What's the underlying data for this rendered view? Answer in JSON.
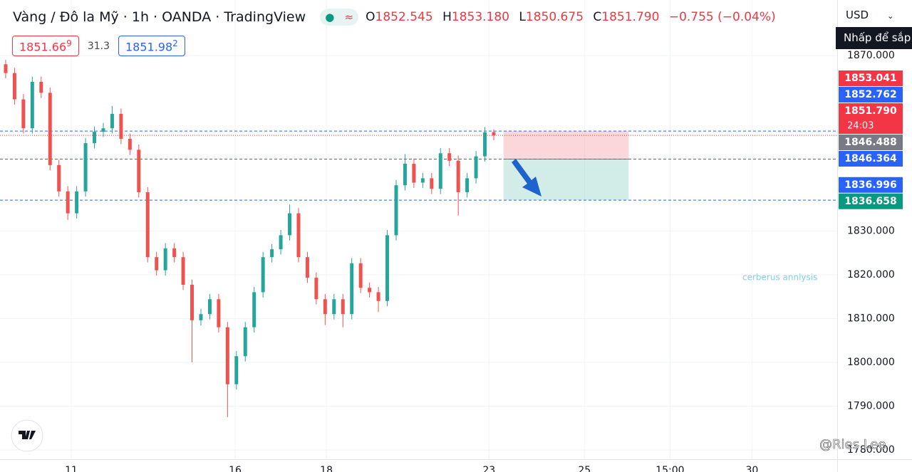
{
  "header": {
    "title": "Vàng / Đô la Mỹ · 1h · OANDA · TradingView",
    "o": "O",
    "o_val": "1852.545",
    "h": "H",
    "h_val": "1853.180",
    "l": "L",
    "l_val": "1850.675",
    "c": "C",
    "c_val": "1851.790",
    "change": "−0.755 (−0.04%)",
    "sell_main": "1851.66",
    "sell_tail": "9",
    "spread": "31.3",
    "buy_main": "1851.98",
    "buy_tail": "2",
    "currency": "USD",
    "tooltip": "Nhấp để sắp",
    "watermark": "cerberus annlysis",
    "credit": "@Ries Lee"
  },
  "chart_data": {
    "type": "candlestick",
    "up_color": "#26a69a",
    "down_color": "#ef5350",
    "grid": true,
    "open": [
      1868,
      1866,
      1860,
      1853.4,
      1864,
      1861.5,
      1845,
      1839,
      1834,
      1839,
      1850,
      1852.6,
      1853.4,
      1856.7,
      1851,
      1848.5,
      1838.8,
      1824,
      1821,
      1826,
      1824,
      1817.7,
      1809.6,
      1811,
      1814.4,
      1808,
      1795,
      1801.4,
      1808,
      1816,
      1824,
      1825.8,
      1829,
      1834,
      1824,
      1819.3,
      1814.4,
      1811,
      1814.4,
      1811,
      1822.6,
      1817,
      1816,
      1814,
      1829,
      1840.4,
      1845.3,
      1841,
      1842,
      1839.6,
      1847.7,
      1846,
      1838.8,
      1842,
      1847,
      1852.545
    ],
    "high": [
      1869,
      1867.2,
      1861.2,
      1865.2,
      1865.2,
      1862.7,
      1846.2,
      1840.2,
      1840.2,
      1851.2,
      1853.8,
      1854.6,
      1858.5,
      1857.9,
      1852.2,
      1849.7,
      1840,
      1825.2,
      1827.2,
      1827.2,
      1825.2,
      1818.9,
      1812.2,
      1815.6,
      1815.6,
      1809.2,
      1802.6,
      1809.2,
      1817.2,
      1825.2,
      1827,
      1830.2,
      1836,
      1835.2,
      1825.2,
      1820.5,
      1815.6,
      1815.6,
      1815.6,
      1823.8,
      1823.8,
      1818.2,
      1817.2,
      1830.2,
      1841.6,
      1847.5,
      1846.5,
      1843.2,
      1843.2,
      1848.9,
      1848.9,
      1847.2,
      1843.2,
      1848.2,
      1853.7,
      1853.18
    ],
    "low": [
      1864.8,
      1858.8,
      1852.2,
      1852.2,
      1860.3,
      1843.8,
      1837.8,
      1832.5,
      1832.8,
      1837.8,
      1848.8,
      1851.4,
      1852.2,
      1849.8,
      1847.3,
      1837.6,
      1822.8,
      1819.8,
      1819.8,
      1822.8,
      1816.5,
      1800,
      1808.4,
      1809.8,
      1806.8,
      1787.5,
      1793.8,
      1800.2,
      1806.8,
      1814.8,
      1822.8,
      1824.6,
      1827.8,
      1822.8,
      1818.1,
      1813.2,
      1808.5,
      1809.8,
      1808,
      1809.8,
      1815.8,
      1814.8,
      1811.5,
      1812.8,
      1827.8,
      1839.2,
      1839.8,
      1839.8,
      1838.4,
      1838.4,
      1844.8,
      1833.5,
      1837.6,
      1840.8,
      1845.8,
      1850.675
    ],
    "close": [
      1866,
      1860,
      1853.4,
      1864,
      1861.5,
      1845,
      1839,
      1834,
      1839,
      1850,
      1852.6,
      1853.4,
      1856.7,
      1851,
      1848.5,
      1838.8,
      1824,
      1821,
      1826,
      1824,
      1817.7,
      1809.6,
      1811,
      1814.4,
      1808,
      1795,
      1801.4,
      1808,
      1816,
      1824,
      1825.8,
      1829,
      1834,
      1824,
      1819.3,
      1814.4,
      1811,
      1814.4,
      1811,
      1822.6,
      1817,
      1816,
      1814,
      1829,
      1840.4,
      1845.3,
      1841,
      1842,
      1839.6,
      1847.7,
      1846,
      1838.8,
      1842,
      1847,
      1852.5,
      1851.79
    ],
    "xlim": [
      -0.64,
      93.7
    ],
    "xticks": [
      {
        "value": 7.39,
        "label": "11"
      },
      {
        "value": 25.86,
        "label": "16"
      },
      {
        "value": 36.14,
        "label": "18"
      },
      {
        "value": 54.46,
        "label": "23"
      },
      {
        "value": 65.22,
        "label": "25"
      },
      {
        "value": 74.86,
        "label": "15:00"
      },
      {
        "value": 84.1,
        "label": "30"
      }
    ],
    "ylim": [
      1777.9,
      1882.67
    ],
    "yticks": [
      {
        "value": 1870,
        "label": "1870.000"
      },
      {
        "value": 1830,
        "label": "1830.000"
      },
      {
        "value": 1820,
        "label": "1820.000"
      },
      {
        "value": 1810,
        "label": "1810.000"
      },
      {
        "value": 1800,
        "label": "1800.000"
      },
      {
        "value": 1790,
        "label": "1790.000"
      },
      {
        "value": 1780,
        "label": "1780.000"
      }
    ],
    "price_tags": [
      {
        "value": 1853.041,
        "label": "1853.041",
        "color": "#f23645"
      },
      {
        "value": 1852.762,
        "label": "1852.762",
        "color": "#2962ff"
      },
      {
        "value": 1851.79,
        "label": "1851.790",
        "color": "#f23645",
        "sub": "24:03"
      },
      {
        "value": 1846.488,
        "label": "1846.488",
        "color": "#787b86"
      },
      {
        "value": 1846.364,
        "label": "1846.364",
        "color": "#2962ff"
      },
      {
        "value": 1836.996,
        "label": "1836.996",
        "color": "#2962ff"
      },
      {
        "value": 1836.658,
        "label": "1836.658",
        "color": "#089981"
      }
    ],
    "dashed_lines": [
      1852.762,
      1846.364,
      1836.996
    ],
    "position": {
      "start": 56.1,
      "end": 70.2,
      "stop": 1852.762,
      "entry": 1846.364,
      "target": 1836.996
    }
  }
}
